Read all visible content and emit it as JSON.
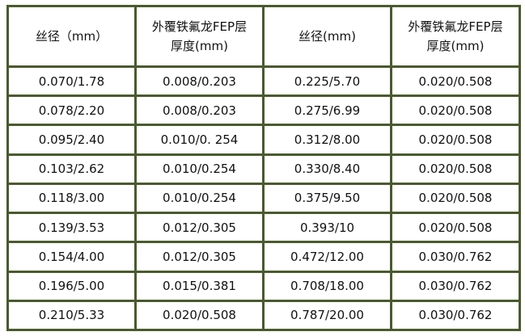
{
  "table": {
    "headers": [
      {
        "lines": [
          "丝径（mm）"
        ]
      },
      {
        "lines": [
          "外覆铁氟龙FEP层",
          "厚度(mm)"
        ]
      },
      {
        "lines": [
          "丝径(mm)"
        ]
      },
      {
        "lines": [
          "外覆铁氟龙FEP层",
          "厚度(mm)"
        ]
      }
    ],
    "rows": [
      [
        "0.070/1.78",
        "0.008/0.203",
        "0.225/5.70",
        "0.020/0.508"
      ],
      [
        "0.078/2.20",
        "0.008/0.203",
        "0.275/6.99",
        "0.020/0.508"
      ],
      [
        "0.095/2.40",
        "0.010/0. 254",
        "0.312/8.00",
        "0.020/0.508"
      ],
      [
        "0.103/2.62",
        "0.010/0.254",
        "0.330/8.40",
        "0.020/0.508"
      ],
      [
        "0.118/3.00",
        "0.010/0.254",
        "0.375/9.50",
        "0.020/0.508"
      ],
      [
        "0.139/3.53",
        "0.012/0.305",
        "0.393/10",
        "0.020/0.508"
      ],
      [
        "0.154/4.00",
        "0.012/0.305",
        "0.472/12.00",
        "0.030/0.762"
      ],
      [
        "0.196/5.00",
        "0.015/0.381",
        "0.708/18.00",
        "0.030/0.762"
      ],
      [
        "0.210/5.33",
        "0.020/0.508",
        "0.787/20.00",
        "0.030/0.762"
      ]
    ],
    "border_color": "#4a5a2e"
  }
}
